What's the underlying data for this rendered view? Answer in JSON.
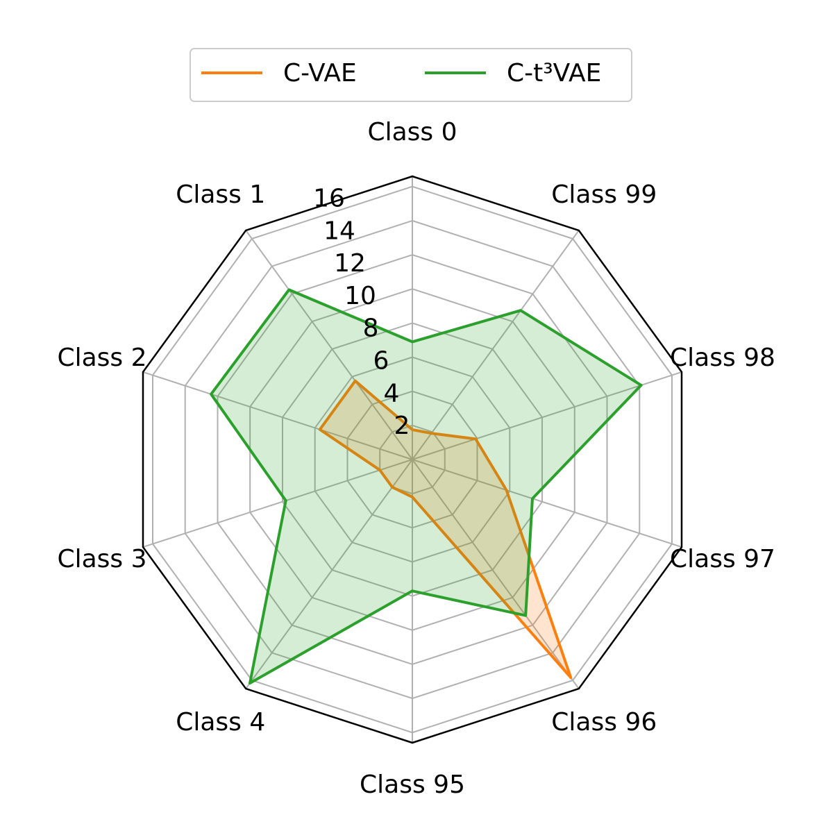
{
  "chart_data": {
    "type": "radar",
    "categories": [
      "Class 0",
      "Class 1",
      "Class 2",
      "Class 3",
      "Class 4",
      "Class 95",
      "Class 96",
      "Class 97",
      "Class 98",
      "Class 99"
    ],
    "series": [
      {
        "name": "C-VAE",
        "color": "#ff7f0e",
        "values": [
          1.75,
          5.7,
          5.7,
          2.0,
          2.0,
          2.2,
          15.8,
          5.8,
          3.9,
          1.9
        ]
      },
      {
        "name": "C-t³VAE",
        "color": "#2ca02c",
        "values": [
          6.9,
          12.3,
          12.4,
          7.8,
          16.2,
          7.7,
          11.3,
          7.4,
          14.1,
          10.8
        ]
      }
    ],
    "ylim": [
      0,
      16.6
    ],
    "yticks": [
      2,
      4,
      6,
      8,
      10,
      12,
      14,
      16
    ],
    "grid": true,
    "legend": "top"
  }
}
